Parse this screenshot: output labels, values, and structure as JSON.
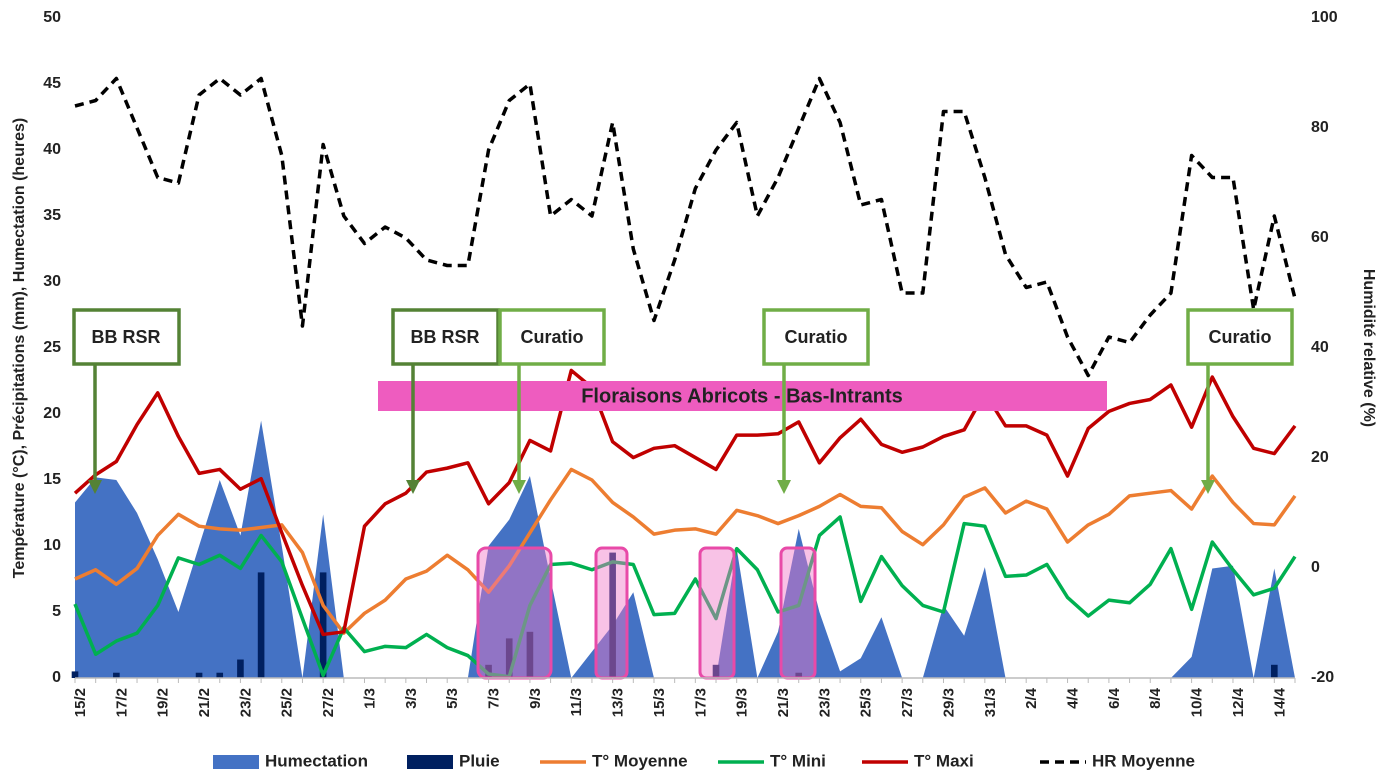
{
  "chart_data": {
    "type": "combo",
    "y_label": "Température (°C), Précipitations (mm), Humectation (heures)",
    "y2_label": "Humidité relative (%)",
    "categories": [
      "15/2",
      null,
      "17/2",
      null,
      "19/2",
      null,
      "21/2",
      null,
      "23/2",
      null,
      "25/2",
      null,
      "27/2",
      null,
      "1/3",
      null,
      "3/3",
      null,
      "5/3",
      null,
      "7/3",
      null,
      "9/3",
      null,
      "11/3",
      null,
      "13/3",
      null,
      "15/3",
      null,
      "17/3",
      null,
      "19/3",
      null,
      "21/3",
      null,
      "23/3",
      null,
      "25/3",
      null,
      "27/3",
      null,
      "29/3",
      null,
      "31/3",
      null,
      "2/4",
      null,
      "4/4",
      null,
      "6/4",
      null,
      "8/4",
      null,
      "10/4",
      null,
      "12/4",
      null,
      "14/4",
      null
    ],
    "ylim": [
      0,
      50
    ],
    "yticks": [
      0,
      5,
      10,
      15,
      20,
      25,
      30,
      35,
      40,
      45,
      50
    ],
    "y2lim": [
      -20,
      100
    ],
    "y2ticks": [
      -20,
      0,
      20,
      40,
      60,
      80,
      100
    ],
    "grid": false,
    "legend": "bottom",
    "series": [
      {
        "name": "Humectation",
        "type": "area",
        "color": "#4472c4",
        "values": [
          13.3,
          15.2,
          15.0,
          12.5,
          9.0,
          5.0,
          10.0,
          15.0,
          10.8,
          19.5,
          10.0,
          0,
          12.4,
          0,
          0,
          0,
          0,
          0,
          0,
          0,
          10.0,
          12.0,
          15.3,
          7.5,
          0,
          2.0,
          4.0,
          6.5,
          0,
          0,
          0,
          0,
          9.8,
          0,
          3.5,
          11.3,
          5.0,
          0.5,
          1.5,
          4.6,
          0,
          0,
          5.5,
          3.2,
          8.4,
          0,
          0,
          0,
          0,
          0,
          0,
          0,
          0,
          0,
          1.6,
          8.3,
          8.5,
          0,
          8.3,
          0
        ]
      },
      {
        "name": "Pluie",
        "type": "bar",
        "color": "#002060",
        "values": [
          0.5,
          0,
          0.4,
          0,
          0,
          0,
          0.4,
          0.4,
          1.4,
          8.0,
          0,
          0,
          8.0,
          0,
          0,
          0,
          0,
          0,
          0,
          0,
          1.0,
          3.0,
          3.5,
          0,
          0,
          0,
          9.5,
          0,
          0,
          0,
          0,
          1.0,
          0,
          0,
          0,
          0.4,
          0,
          0,
          0,
          0,
          0,
          0,
          0,
          0,
          0,
          0,
          0,
          0,
          0,
          0,
          0,
          0,
          0,
          0,
          0,
          0,
          0,
          0,
          1.0,
          0
        ]
      },
      {
        "name": "T° Moyenne",
        "type": "line",
        "color": "#ed7d31",
        "values": [
          7.5,
          8.2,
          7.1,
          8.3,
          10.8,
          12.4,
          11.5,
          11.3,
          11.2,
          11.4,
          11.6,
          9.5,
          5.5,
          3.4,
          4.9,
          5.9,
          7.5,
          8.1,
          9.3,
          8.2,
          6.5,
          8.5,
          11.0,
          13.5,
          15.8,
          15.0,
          13.3,
          12.2,
          10.9,
          11.2,
          11.3,
          10.9,
          12.7,
          12.3,
          11.7,
          12.3,
          13.0,
          13.9,
          13.0,
          12.9,
          11.1,
          10.1,
          11.6,
          13.7,
          14.4,
          12.5,
          13.4,
          12.8,
          10.3,
          11.6,
          12.4,
          13.8,
          14.0,
          14.2,
          12.8,
          15.3,
          13.3,
          11.7,
          11.6,
          13.8
        ]
      },
      {
        "name": "T° Mini",
        "type": "line",
        "color": "#00b050",
        "values": [
          5.6,
          1.8,
          2.8,
          3.4,
          5.5,
          9.1,
          8.6,
          9.3,
          8.3,
          10.8,
          8.8,
          4.5,
          0.2,
          3.8,
          2.0,
          2.4,
          2.3,
          3.3,
          2.3,
          1.7,
          0.3,
          0.1,
          5.5,
          8.6,
          8.7,
          8.2,
          8.8,
          8.6,
          4.8,
          4.9,
          7.5,
          4.5,
          9.8,
          8.2,
          5.0,
          5.5,
          10.8,
          12.2,
          5.8,
          9.2,
          7.0,
          5.5,
          5.0,
          11.7,
          11.5,
          7.7,
          7.8,
          8.6,
          6.1,
          4.7,
          5.9,
          5.7,
          7.1,
          9.8,
          5.2,
          10.3,
          8.2,
          6.3,
          6.8,
          9.2
        ]
      },
      {
        "name": "T° Maxi",
        "type": "line",
        "color": "#c00000",
        "values": [
          14.0,
          15.4,
          16.4,
          19.2,
          21.6,
          18.3,
          15.5,
          15.8,
          14.3,
          15.1,
          11.0,
          7.0,
          3.3,
          3.5,
          11.5,
          13.2,
          14.0,
          15.6,
          15.9,
          16.3,
          13.2,
          14.8,
          18.0,
          17.2,
          23.3,
          22.0,
          17.9,
          16.7,
          17.4,
          17.6,
          16.7,
          15.8,
          18.4,
          18.4,
          18.5,
          19.4,
          16.3,
          18.2,
          19.6,
          17.7,
          17.1,
          17.5,
          18.3,
          18.8,
          21.6,
          19.1,
          19.1,
          18.4,
          15.3,
          18.9,
          20.2,
          20.8,
          21.1,
          22.2,
          19.0,
          22.8,
          19.8,
          17.4,
          17.0,
          19.1
        ]
      },
      {
        "name": "HR Moyenne",
        "type": "line",
        "dashed": true,
        "axis": "y2",
        "color": "#000000",
        "values": [
          84,
          85,
          89,
          80,
          71,
          70,
          86,
          89,
          86,
          89,
          75,
          44,
          77,
          64,
          59,
          62,
          60,
          56,
          55,
          55,
          76,
          85,
          88,
          64,
          67,
          64,
          81,
          58,
          45,
          56,
          69,
          76,
          81,
          64,
          71,
          80,
          89,
          81,
          66,
          67,
          50,
          50,
          83,
          83,
          71,
          57,
          51,
          52,
          42,
          35,
          42,
          41,
          46,
          50,
          75,
          71,
          71,
          47,
          64,
          49
        ]
      }
    ],
    "annotations": [
      "BB RSR",
      "BB RSR",
      "Curatio",
      "Curatio",
      "Curatio",
      "Floraisons Abricots - Bas-Intrants"
    ]
  }
}
